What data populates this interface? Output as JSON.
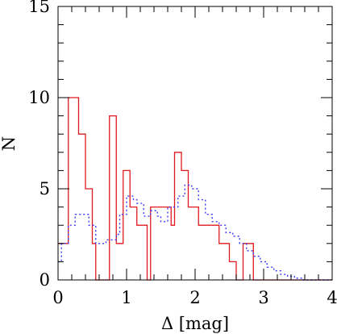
{
  "chart_data": {
    "type": "histogram",
    "title": "",
    "xlabel": "Δ [mag]",
    "ylabel": "N",
    "xlim": [
      0,
      4
    ],
    "ylim": [
      0,
      15
    ],
    "x_ticks": [
      0,
      1,
      2,
      3,
      4
    ],
    "y_ticks": [
      0,
      5,
      10,
      15
    ],
    "grid": false,
    "legend": "none",
    "series": [
      {
        "style": "solid",
        "color": "#e0191e",
        "bin_edges": [
          0.0,
          0.15,
          0.3,
          0.4,
          0.5,
          0.55,
          0.75,
          0.85,
          0.95,
          1.05,
          1.15,
          1.3,
          1.35,
          1.65,
          1.7,
          1.8,
          1.9,
          2.05,
          2.2,
          2.35,
          2.5,
          2.6,
          2.7,
          2.85,
          2.9,
          3.0,
          4.0
        ],
        "values": [
          2,
          10,
          8,
          5,
          2,
          0,
          9,
          2,
          6,
          4,
          3,
          0,
          4,
          3,
          7,
          6,
          4,
          3,
          3,
          2,
          1,
          0,
          2,
          0,
          0,
          0
        ]
      },
      {
        "style": "dotted",
        "color": "#3a3aff",
        "bin_edges": [
          0.0,
          0.05,
          0.15,
          0.25,
          0.45,
          0.55,
          0.7,
          0.85,
          0.9,
          1.0,
          1.1,
          1.15,
          1.25,
          1.35,
          1.45,
          1.5,
          1.6,
          1.75,
          1.85,
          1.95,
          2.05,
          2.15,
          2.25,
          2.35,
          2.45,
          2.55,
          2.65,
          2.75,
          2.85,
          2.95,
          3.05,
          3.15,
          3.25,
          3.35,
          3.45,
          3.55,
          3.65,
          4.0
        ],
        "values": [
          1,
          2,
          3,
          3.6,
          3,
          2,
          2.2,
          2.5,
          3.6,
          4.6,
          4.4,
          4.2,
          3.5,
          3.8,
          3.5,
          3.2,
          4.0,
          4.6,
          5.2,
          5.0,
          4.4,
          3.6,
          3.2,
          3.0,
          2.6,
          2.4,
          2.0,
          1.6,
          1.3,
          1.0,
          0.7,
          0.5,
          0.3,
          0.2,
          0.1,
          0,
          0
        ]
      }
    ]
  }
}
